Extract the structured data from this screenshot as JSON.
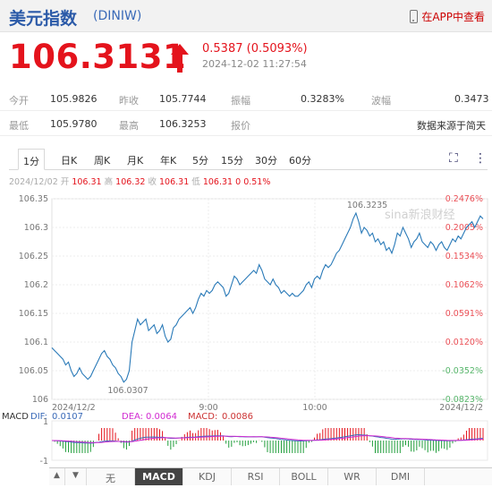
{
  "header": {
    "title": "美元指数",
    "code": "(DINIW)",
    "app_link": "在APP中查看"
  },
  "quote": {
    "price": "106.3131",
    "change": "0.5387 (0.5093%)",
    "time": "2024-12-02 11:27:54"
  },
  "stats": [
    {
      "l1": "今开",
      "v1": "105.9826",
      "l2": "昨收",
      "v2": "105.7744",
      "l3": "振幅",
      "v3": "0.3283%",
      "l4": "波幅",
      "v4": "0.3473"
    },
    {
      "l1": "最低",
      "v1": "105.9780",
      "l2": "最高",
      "v2": "106.3253",
      "l3": "报价",
      "v3": "",
      "l4": "",
      "v4": "数据来源于简天"
    }
  ],
  "tabs": [
    "1分",
    "日K",
    "周K",
    "月K",
    "年K",
    "5分",
    "15分",
    "30分",
    "60分"
  ],
  "info": {
    "date": "2024/12/02",
    "open_l": "开",
    "open": "106.31",
    "high_l": "高",
    "high": "106.32",
    "close_l": "收",
    "close": "106.31",
    "low_l": "低",
    "low": "106.31",
    "chg": "0",
    "pct": "0.51%"
  },
  "watermark": "sina新浪财经",
  "colors": {
    "up": "#e4131c",
    "down": "#1f9d3a",
    "line": "#2a7ab8"
  },
  "chart_data": {
    "type": "line",
    "y_left_ticks": [
      "106.35",
      "106.3",
      "106.25",
      "106.2",
      "106.15",
      "106.1",
      "106.05",
      "106"
    ],
    "y_right_ticks": [
      "0.2476%",
      "0.2005%",
      "0.1534%",
      "0.1062%",
      "0.0591%",
      "0.0120%",
      "-0.0352%",
      "-0.0823%"
    ],
    "x_ticks": [
      "2024/12/2",
      "9:00",
      "10:00",
      "2024/12/2"
    ],
    "ylim": [
      106.0,
      106.35
    ],
    "annotations": [
      {
        "text": "106.3235",
        "value": 106.3235
      },
      {
        "text": "106.0307",
        "value": 106.0307
      }
    ],
    "values": [
      106.09,
      106.085,
      106.08,
      106.075,
      106.07,
      106.06,
      106.065,
      106.05,
      106.04,
      106.045,
      106.055,
      106.045,
      106.04,
      106.035,
      106.04,
      106.05,
      106.06,
      106.07,
      106.08,
      106.085,
      106.075,
      106.07,
      106.06,
      106.055,
      106.045,
      106.04,
      106.03,
      106.035,
      106.05,
      106.1,
      106.12,
      106.14,
      106.13,
      106.135,
      106.14,
      106.12,
      106.125,
      106.13,
      106.115,
      106.12,
      106.13,
      106.11,
      106.1,
      106.105,
      106.125,
      106.13,
      106.14,
      106.145,
      106.15,
      106.155,
      106.16,
      106.15,
      106.16,
      106.175,
      106.185,
      106.18,
      106.19,
      106.185,
      106.19,
      106.2,
      106.205,
      106.2,
      106.195,
      106.18,
      106.185,
      106.2,
      106.215,
      106.21,
      106.2,
      106.205,
      106.21,
      106.215,
      106.22,
      106.225,
      106.22,
      106.235,
      106.225,
      106.21,
      106.205,
      106.2,
      106.21,
      106.2,
      106.195,
      106.185,
      106.19,
      106.185,
      106.18,
      106.185,
      106.18,
      106.18,
      106.185,
      106.19,
      106.2,
      106.205,
      106.195,
      106.21,
      106.215,
      106.21,
      106.225,
      106.235,
      106.23,
      106.235,
      106.245,
      106.255,
      106.26,
      106.27,
      106.28,
      106.29,
      106.3,
      106.315,
      106.325,
      106.31,
      106.29,
      106.3,
      106.295,
      106.285,
      106.29,
      106.275,
      106.28,
      106.27,
      106.275,
      106.26,
      106.265,
      106.255,
      106.27,
      106.29,
      106.285,
      106.3,
      106.29,
      106.28,
      106.265,
      106.275,
      106.28,
      106.29,
      106.275,
      106.27,
      106.265,
      106.275,
      106.27,
      106.26,
      106.27,
      106.275,
      106.265,
      106.26,
      106.27,
      106.28,
      106.275,
      106.285,
      106.28,
      106.29,
      106.3,
      106.305,
      106.31,
      106.3,
      106.31,
      106.32,
      106.315
    ]
  },
  "macd": {
    "label": "MACD",
    "dif_label": "DIF:",
    "dif": "0.0107",
    "dea_label": "DEA:",
    "dea": "0.0064",
    "macd_label": "MACD:",
    "macd": "0.0086",
    "y_ticks": [
      "1",
      "-1"
    ]
  },
  "bottom": {
    "nav_left": "▲",
    "nav_right": "▼",
    "tabs": [
      "无",
      "MACD",
      "KDJ",
      "RSI",
      "BOLL",
      "WR",
      "DMI"
    ]
  }
}
